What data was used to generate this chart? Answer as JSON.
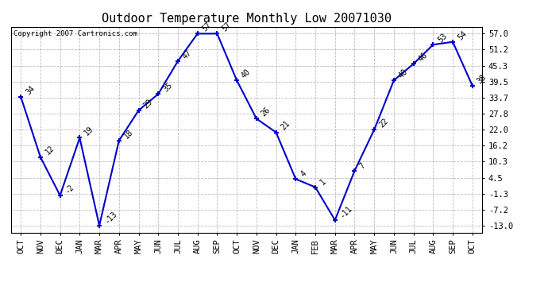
{
  "title": "Outdoor Temperature Monthly Low 20071030",
  "copyright": "Copyright 2007 Cartronics.com",
  "x_labels": [
    "OCT",
    "NOV",
    "DEC",
    "JAN",
    "MAR",
    "APR",
    "MAY",
    "JUN",
    "JUL",
    "AUG",
    "SEP",
    "OCT",
    "NOV",
    "DEC",
    "JAN",
    "FEB",
    "MAR",
    "APR",
    "MAY",
    "JUN",
    "JUL",
    "AUG",
    "SEP",
    "OCT"
  ],
  "y_values": [
    34,
    12,
    -2,
    19,
    -13,
    18,
    29,
    35,
    47,
    57,
    57,
    40,
    26,
    21,
    4,
    1,
    -11,
    7,
    22,
    40,
    46,
    53,
    54,
    38
  ],
  "y_ticks": [
    57.0,
    51.2,
    45.3,
    39.5,
    33.7,
    27.8,
    22.0,
    16.2,
    10.3,
    4.5,
    -1.3,
    -7.2,
    -13.0
  ],
  "line_color": "#0000cc",
  "marker_color": "#0000cc",
  "background_color": "#ffffff",
  "grid_color": "#bbbbbb",
  "title_fontsize": 11,
  "label_fontsize": 7,
  "tick_fontsize": 7.5,
  "copyright_fontsize": 6.5,
  "ylim_min": -15.5,
  "ylim_max": 59.5
}
